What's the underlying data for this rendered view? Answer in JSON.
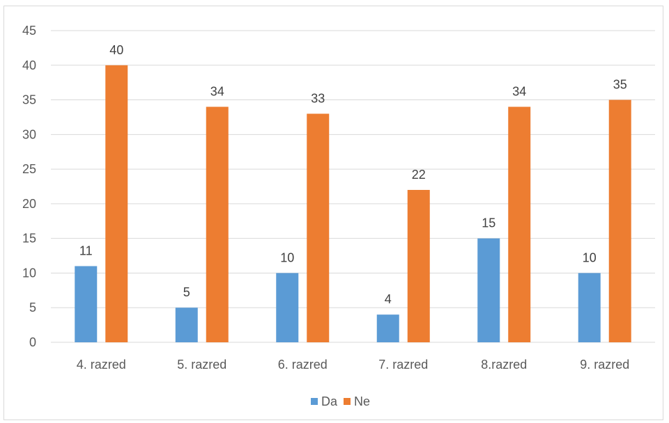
{
  "chart_data": {
    "type": "bar",
    "title": "",
    "xlabel": "",
    "ylabel": "",
    "categories": [
      "4. razred",
      "5. razred",
      "6. razred",
      "7. razred",
      "8.razred",
      "9. razred"
    ],
    "series": [
      {
        "name": "Da",
        "color": "#5b9bd5",
        "values": [
          11,
          5,
          10,
          4,
          15,
          10
        ]
      },
      {
        "name": "Ne",
        "color": "#ed7d31",
        "values": [
          40,
          34,
          33,
          22,
          34,
          35
        ]
      }
    ],
    "ylim": [
      0,
      45
    ],
    "yticks": [
      0,
      5,
      10,
      15,
      20,
      25,
      30,
      35,
      40,
      45
    ],
    "grid": true,
    "gridColor": "#d9d9d9",
    "legend": "bottom",
    "data_labels": true
  }
}
